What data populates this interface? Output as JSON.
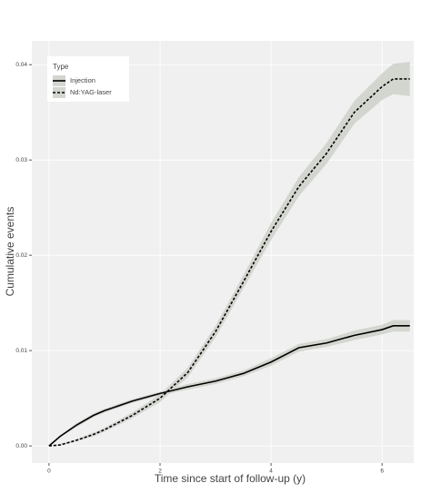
{
  "chart_data": {
    "type": "line",
    "xlabel": "Time since start of follow-up (y)",
    "ylabel": "Cumulative events",
    "legend_title": "Type",
    "legend_position": "top-left",
    "grid": true,
    "x": [
      0,
      0.2,
      0.5,
      0.8,
      1.0,
      1.5,
      2.0,
      2.5,
      3.0,
      3.5,
      4.0,
      4.5,
      5.0,
      5.5,
      6.0,
      6.2,
      6.5
    ],
    "series": [
      {
        "name": "Injection",
        "color": "#000000",
        "dash": "solid",
        "band_color": "#d3d6cf",
        "values": [
          0,
          0.001,
          0.0022,
          0.0032,
          0.0037,
          0.0047,
          0.0055,
          0.0062,
          0.0068,
          0.0076,
          0.0088,
          0.0103,
          0.0108,
          0.0116,
          0.0122,
          0.0126,
          0.0126
        ],
        "lower": [
          0,
          0.0009,
          0.002,
          0.003,
          0.0035,
          0.0045,
          0.0053,
          0.0059,
          0.0065,
          0.0073,
          0.0084,
          0.0099,
          0.0104,
          0.0111,
          0.0117,
          0.012,
          0.012
        ],
        "upper": [
          0,
          0.0011,
          0.0024,
          0.0034,
          0.0039,
          0.0049,
          0.0057,
          0.0065,
          0.0071,
          0.0079,
          0.0092,
          0.0107,
          0.0112,
          0.0121,
          0.0127,
          0.0132,
          0.0132
        ]
      },
      {
        "name": "Nd:YAG-laser",
        "color": "#000000",
        "dash": "dashed",
        "band_color": "#d3d6cf",
        "values": [
          0,
          0.0001,
          0.0006,
          0.0012,
          0.0017,
          0.0032,
          0.005,
          0.0077,
          0.012,
          0.0172,
          0.0225,
          0.0272,
          0.0307,
          0.035,
          0.0377,
          0.0385,
          0.0385
        ],
        "lower": [
          0,
          0.0,
          0.0005,
          0.001,
          0.0015,
          0.0029,
          0.0046,
          0.0072,
          0.0114,
          0.0165,
          0.0216,
          0.0262,
          0.0296,
          0.0338,
          0.0363,
          0.0369,
          0.0367
        ],
        "upper": [
          0,
          0.0002,
          0.0007,
          0.0014,
          0.0019,
          0.0035,
          0.0054,
          0.0082,
          0.0126,
          0.0179,
          0.0234,
          0.0282,
          0.0318,
          0.0362,
          0.0391,
          0.0401,
          0.0403
        ]
      }
    ],
    "xlim": [
      -0.31,
      6.57
    ],
    "ylim": [
      -0.0018,
      0.0425
    ],
    "xticks": [
      0,
      2,
      4,
      6
    ],
    "yticks": [
      {
        "value": 0,
        "label": "0.00"
      },
      0.01,
      0.02,
      0.03,
      0.04
    ]
  }
}
